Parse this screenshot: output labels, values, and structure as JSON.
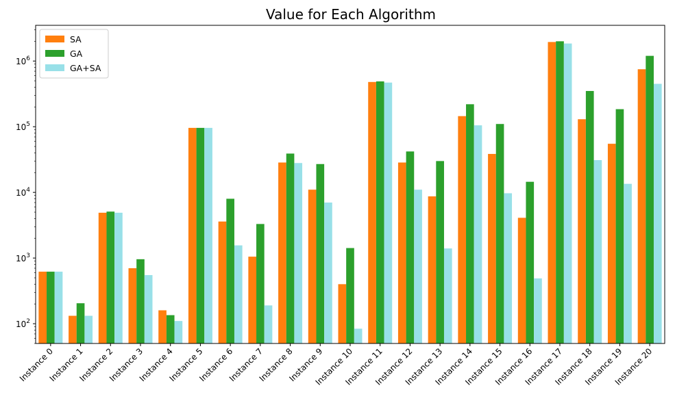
{
  "chart_data": {
    "type": "bar",
    "title": "Value for Each Algorithm",
    "xlabel": "",
    "ylabel": "",
    "yscale": "log",
    "ylim": [
      50,
      3500000
    ],
    "y_ticks": [
      {
        "value": 100,
        "label_base": "10",
        "label_exp": "2"
      },
      {
        "value": 1000,
        "label_base": "10",
        "label_exp": "3"
      },
      {
        "value": 10000,
        "label_base": "10",
        "label_exp": "4"
      },
      {
        "value": 100000,
        "label_base": "10",
        "label_exp": "5"
      },
      {
        "value": 1000000,
        "label_base": "10",
        "label_exp": "6"
      }
    ],
    "grid": false,
    "legend_position": "top-left",
    "categories": [
      "Instance 0",
      "Instance 1",
      "Instance 2",
      "Instance 3",
      "Instance 4",
      "Instance 5",
      "Instance 6",
      "Instance 7",
      "Instance 8",
      "Instance 9",
      "Instance 10",
      "Instance 11",
      "Instance 12",
      "Instance 13",
      "Instance 14",
      "Instance 15",
      "Instance 16",
      "Instance 17",
      "Instance 18",
      "Instance 19",
      "Instance 20"
    ],
    "series": [
      {
        "name": "SA",
        "color": "#ff7f0e",
        "values": [
          620,
          132,
          4900,
          700,
          160,
          96000,
          3600,
          1050,
          28500,
          11000,
          400,
          480000,
          28500,
          8700,
          145000,
          38500,
          4100,
          1950000,
          130000,
          55000,
          750000
        ]
      },
      {
        "name": "GA",
        "color": "#2ca02c",
        "values": [
          620,
          205,
          5100,
          960,
          135,
          96000,
          8000,
          3300,
          39000,
          27000,
          1420,
          490000,
          42000,
          30000,
          220000,
          110000,
          14500,
          2000000,
          350000,
          185000,
          1200000
        ]
      },
      {
        "name": "GA+SA",
        "color": "#98e0e8",
        "values": [
          620,
          132,
          4900,
          550,
          110,
          96000,
          1560,
          190,
          28000,
          7000,
          84,
          470000,
          11000,
          1400,
          105000,
          9700,
          490,
          1850000,
          31000,
          13500,
          450000
        ]
      }
    ]
  }
}
